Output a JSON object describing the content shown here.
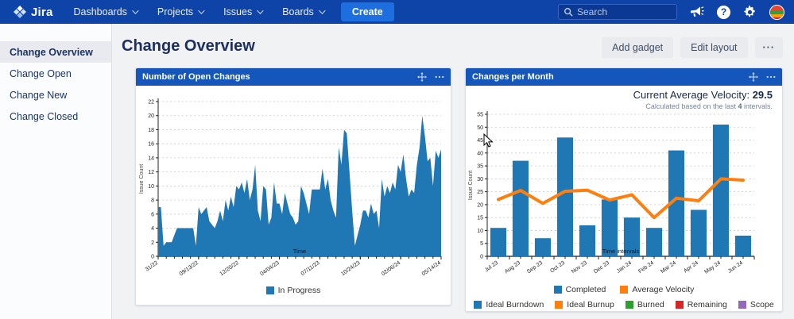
{
  "nav": {
    "brand": "Jira",
    "items": [
      {
        "label": "Dashboards"
      },
      {
        "label": "Projects"
      },
      {
        "label": "Issues"
      },
      {
        "label": "Boards"
      }
    ],
    "create_label": "Create",
    "search_placeholder": "Search"
  },
  "sidebar": {
    "items": [
      {
        "label": "Change Overview",
        "active": true
      },
      {
        "label": "Change Open",
        "active": false
      },
      {
        "label": "Change New",
        "active": false
      },
      {
        "label": "Change Closed",
        "active": false
      }
    ]
  },
  "header": {
    "title": "Change Overview",
    "add_gadget_label": "Add gadget",
    "edit_layout_label": "Edit layout",
    "more_label": "···"
  },
  "panels": [
    {
      "title": "Number of Open Changes"
    },
    {
      "title": "Changes per Month",
      "velocity_label": "Current Average Velocity: ",
      "velocity_value": "29.5",
      "velocity_note_prefix": "Calculated based on the last ",
      "velocity_note_bold": "4",
      "velocity_note_suffix": " intervals."
    }
  ],
  "chart_data": [
    {
      "type": "area",
      "title": "Number of Open Changes",
      "xlabel": "Time",
      "ylabel": "Issue Count",
      "ylim": [
        0,
        22
      ],
      "ytick_step": 2,
      "grid": true,
      "legend_position": "bottom",
      "xtick_labels": [
        "31/22",
        "09/13/22",
        "12/20/22",
        "04/04/23",
        "07/11/23",
        "10/24/23",
        "02/06/24",
        "05/14/24"
      ],
      "xtick_every": 15,
      "series": [
        {
          "name": "In Progress",
          "color": "#1f77b4",
          "values": [
            7,
            7,
            1.5,
            2,
            2,
            2,
            3,
            4,
            4,
            4,
            4,
            4,
            4,
            4,
            1.5,
            7,
            6,
            6.5,
            7,
            5,
            4.5,
            4,
            5,
            6.5,
            5,
            8,
            6.5,
            8.5,
            7,
            10,
            9.5,
            10.5,
            9,
            11,
            8,
            9.5,
            13,
            6.5,
            5,
            10,
            9.5,
            4.5,
            5.5,
            10.5,
            7.5,
            7.5,
            6,
            9,
            7.5,
            6,
            5.5,
            4.5,
            5,
            10,
            9,
            7.5,
            6,
            9.5,
            9.5,
            9.5,
            9.5,
            12.5,
            9.5,
            11,
            8,
            6.5,
            5.5,
            15.5,
            13,
            18,
            17.5,
            12,
            6.5,
            1.5,
            3,
            4.5,
            6.5,
            6.5,
            5.5,
            7.5,
            6,
            6.5,
            4,
            11,
            8.5,
            10,
            9,
            10.5,
            9.5,
            13,
            12,
            14.5,
            11,
            8.5,
            9.5,
            9,
            13,
            15.5,
            20,
            17,
            13.5,
            14,
            10,
            15,
            14,
            15.2
          ]
        }
      ]
    },
    {
      "type": "bar+line",
      "title": "Changes per Month",
      "xlabel": "Time intervals",
      "ylabel": "Issue Count",
      "ylim": [
        0,
        55
      ],
      "ytick_step": 5,
      "grid": true,
      "legend_position": "bottom",
      "categories": [
        "Jul 23",
        "Aug 23",
        "Sep 23",
        "Oct 23",
        "Nov 23",
        "Dec 23",
        "Jan 24",
        "Feb 24",
        "Mar 24",
        "Apr 24",
        "May 24",
        "Jun 24"
      ],
      "series": [
        {
          "name": "Completed",
          "type": "bar",
          "color": "#1f77b4",
          "values": [
            11,
            37,
            7,
            46,
            12,
            22,
            15,
            11,
            41,
            18,
            51,
            8
          ]
        },
        {
          "name": "Average Velocity",
          "type": "line",
          "color": "#ff7f0e",
          "values": [
            22,
            25.5,
            20.5,
            25.2,
            25.6,
            21.8,
            23.8,
            15,
            22.5,
            21.5,
            30,
            29.5
          ]
        }
      ],
      "legend2": [
        {
          "name": "Ideal Burndown",
          "color": "#1f77b4"
        },
        {
          "name": "Ideal Burnup",
          "color": "#ff7f0e"
        },
        {
          "name": "Burned",
          "color": "#2ca02c"
        },
        {
          "name": "Remaining",
          "color": "#d62728"
        },
        {
          "name": "Scope",
          "color": "#9467bd"
        }
      ]
    }
  ],
  "colors": {
    "nav_bg": "#0e43a8",
    "create_btn": "#1d6fe0",
    "panel_header_bg": "#1456ba",
    "series_blue": "#1f77b4",
    "series_orange": "#ff7f0e"
  }
}
